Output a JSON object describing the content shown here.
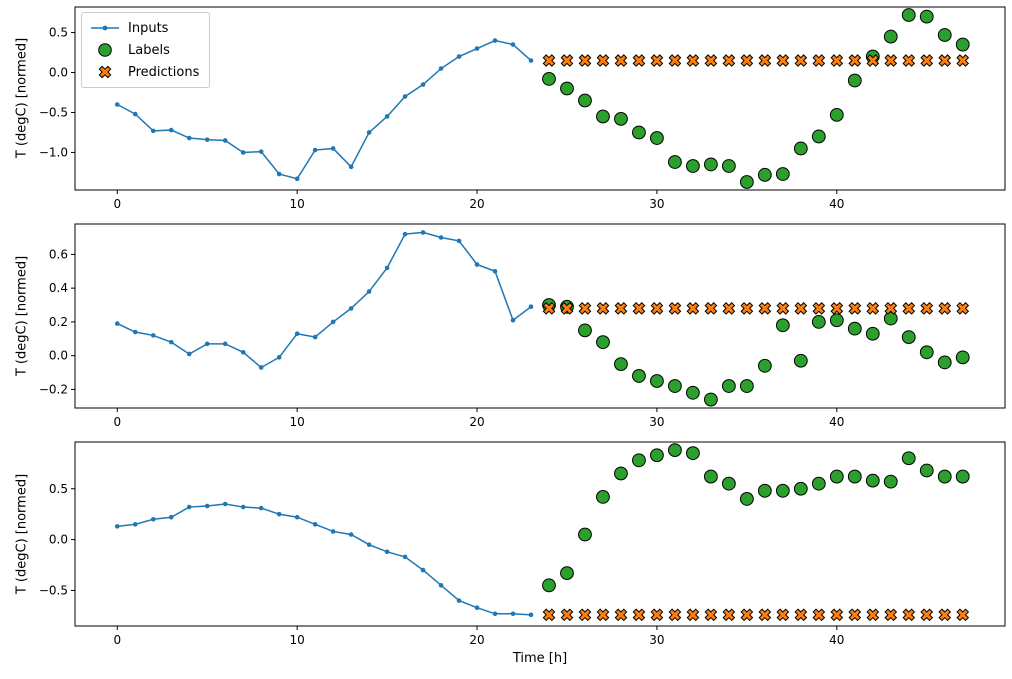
{
  "figure": {
    "xlabel": "Time [h]",
    "background": "#ffffff"
  },
  "legend": {
    "items": [
      {
        "label": "Inputs",
        "marker": "line-dot",
        "color": "#1f77b4"
      },
      {
        "label": "Labels",
        "marker": "circle",
        "color": "#2ca02c"
      },
      {
        "label": "Predictions",
        "marker": "x-cross",
        "color": "#ff7f0e"
      }
    ],
    "edge_color": "#cccccc",
    "position": "upper-left"
  },
  "chart_data": [
    {
      "type": "line",
      "title": "",
      "xlabel": "",
      "ylabel": "T (degC) [normed]",
      "xlim": [
        -2.35,
        49.35
      ],
      "ylim": [
        -1.47,
        0.82
      ],
      "xticks": [
        0,
        10,
        20,
        30,
        40
      ],
      "yticks": [
        0.5,
        0.0,
        -0.5,
        -1.0
      ],
      "grid": false,
      "series": [
        {
          "name": "Inputs",
          "type": "line",
          "color": "#1f77b4",
          "x": [
            0,
            1,
            2,
            3,
            4,
            5,
            6,
            7,
            8,
            9,
            10,
            11,
            12,
            13,
            14,
            15,
            16,
            17,
            18,
            19,
            20,
            21,
            22,
            23
          ],
          "y": [
            -0.4,
            -0.52,
            -0.73,
            -0.72,
            -0.82,
            -0.84,
            -0.85,
            -1.0,
            -0.99,
            -1.27,
            -1.33,
            -0.97,
            -0.95,
            -1.18,
            -0.75,
            -0.55,
            -0.3,
            -0.15,
            0.05,
            0.2,
            0.3,
            0.4,
            0.35,
            0.15
          ]
        },
        {
          "name": "Labels",
          "type": "scatter-circle",
          "color": "#2ca02c",
          "x": [
            24,
            25,
            26,
            27,
            28,
            29,
            30,
            31,
            32,
            33,
            34,
            35,
            36,
            37,
            38,
            39,
            40,
            41,
            42,
            43,
            44,
            45,
            46,
            47
          ],
          "y": [
            -0.08,
            -0.2,
            -0.35,
            -0.55,
            -0.58,
            -0.75,
            -0.82,
            -1.12,
            -1.17,
            -1.15,
            -1.17,
            -1.37,
            -1.28,
            -1.27,
            -0.95,
            -0.8,
            -0.53,
            -0.1,
            0.2,
            0.45,
            0.72,
            0.7,
            0.47,
            0.35
          ]
        },
        {
          "name": "Predictions",
          "type": "scatter-x",
          "color": "#ff7f0e",
          "x": [
            24,
            25,
            26,
            27,
            28,
            29,
            30,
            31,
            32,
            33,
            34,
            35,
            36,
            37,
            38,
            39,
            40,
            41,
            42,
            43,
            44,
            45,
            46,
            47
          ],
          "y": [
            0.15,
            0.15,
            0.15,
            0.15,
            0.15,
            0.15,
            0.15,
            0.15,
            0.15,
            0.15,
            0.15,
            0.15,
            0.15,
            0.15,
            0.15,
            0.15,
            0.15,
            0.15,
            0.15,
            0.15,
            0.15,
            0.15,
            0.15,
            0.15
          ]
        }
      ]
    },
    {
      "type": "line",
      "title": "",
      "xlabel": "",
      "ylabel": "T (degC) [normed]",
      "xlim": [
        -2.35,
        49.35
      ],
      "ylim": [
        -0.31,
        0.78
      ],
      "xticks": [
        0,
        10,
        20,
        30,
        40
      ],
      "yticks": [
        0.6,
        0.4,
        0.2,
        0.0,
        -0.2
      ],
      "grid": false,
      "series": [
        {
          "name": "Inputs",
          "type": "line",
          "color": "#1f77b4",
          "x": [
            0,
            1,
            2,
            3,
            4,
            5,
            6,
            7,
            8,
            9,
            10,
            11,
            12,
            13,
            14,
            15,
            16,
            17,
            18,
            19,
            20,
            21,
            22,
            23
          ],
          "y": [
            0.19,
            0.14,
            0.12,
            0.08,
            0.01,
            0.07,
            0.07,
            0.02,
            -0.07,
            -0.01,
            0.13,
            0.11,
            0.2,
            0.28,
            0.38,
            0.52,
            0.72,
            0.73,
            0.7,
            0.68,
            0.54,
            0.5,
            0.21,
            0.29
          ]
        },
        {
          "name": "Labels",
          "type": "scatter-circle",
          "color": "#2ca02c",
          "x": [
            24,
            25,
            26,
            27,
            28,
            29,
            30,
            31,
            32,
            33,
            34,
            35,
            36,
            37,
            38,
            39,
            40,
            41,
            42,
            43,
            44,
            45,
            46,
            47
          ],
          "y": [
            0.3,
            0.29,
            0.15,
            0.08,
            -0.05,
            -0.12,
            -0.15,
            -0.18,
            -0.22,
            -0.26,
            -0.18,
            -0.18,
            -0.06,
            0.18,
            -0.03,
            0.2,
            0.21,
            0.16,
            0.13,
            0.22,
            0.11,
            0.02,
            -0.04,
            -0.01
          ]
        },
        {
          "name": "Predictions",
          "type": "scatter-x",
          "color": "#ff7f0e",
          "x": [
            24,
            25,
            26,
            27,
            28,
            29,
            30,
            31,
            32,
            33,
            34,
            35,
            36,
            37,
            38,
            39,
            40,
            41,
            42,
            43,
            44,
            45,
            46,
            47
          ],
          "y": [
            0.28,
            0.28,
            0.28,
            0.28,
            0.28,
            0.28,
            0.28,
            0.28,
            0.28,
            0.28,
            0.28,
            0.28,
            0.28,
            0.28,
            0.28,
            0.28,
            0.28,
            0.28,
            0.28,
            0.28,
            0.28,
            0.28,
            0.28,
            0.28
          ]
        }
      ]
    },
    {
      "type": "line",
      "title": "",
      "xlabel": "Time [h]",
      "ylabel": "T (degC) [normed]",
      "xlim": [
        -2.35,
        49.35
      ],
      "ylim": [
        -0.85,
        0.96
      ],
      "xticks": [
        0,
        10,
        20,
        30,
        40
      ],
      "yticks": [
        0.5,
        0.0,
        -0.5
      ],
      "grid": false,
      "series": [
        {
          "name": "Inputs",
          "type": "line",
          "color": "#1f77b4",
          "x": [
            0,
            1,
            2,
            3,
            4,
            5,
            6,
            7,
            8,
            9,
            10,
            11,
            12,
            13,
            14,
            15,
            16,
            17,
            18,
            19,
            20,
            21,
            22,
            23
          ],
          "y": [
            0.13,
            0.15,
            0.2,
            0.22,
            0.32,
            0.33,
            0.35,
            0.32,
            0.31,
            0.25,
            0.22,
            0.15,
            0.08,
            0.05,
            -0.05,
            -0.12,
            -0.17,
            -0.3,
            -0.45,
            -0.6,
            -0.67,
            -0.73,
            -0.73,
            -0.74
          ]
        },
        {
          "name": "Labels",
          "type": "scatter-circle",
          "color": "#2ca02c",
          "x": [
            24,
            25,
            26,
            27,
            28,
            29,
            30,
            31,
            32,
            33,
            34,
            35,
            36,
            37,
            38,
            39,
            40,
            41,
            42,
            43,
            44,
            45,
            46,
            47
          ],
          "y": [
            -0.45,
            -0.33,
            0.05,
            0.42,
            0.65,
            0.78,
            0.83,
            0.88,
            0.85,
            0.62,
            0.55,
            0.4,
            0.48,
            0.48,
            0.5,
            0.55,
            0.62,
            0.62,
            0.58,
            0.57,
            0.8,
            0.68,
            0.62,
            0.62
          ]
        },
        {
          "name": "Predictions",
          "type": "scatter-x",
          "color": "#ff7f0e",
          "x": [
            24,
            25,
            26,
            27,
            28,
            29,
            30,
            31,
            32,
            33,
            34,
            35,
            36,
            37,
            38,
            39,
            40,
            41,
            42,
            43,
            44,
            45,
            46,
            47
          ],
          "y": [
            -0.74,
            -0.74,
            -0.74,
            -0.74,
            -0.74,
            -0.74,
            -0.74,
            -0.74,
            -0.74,
            -0.74,
            -0.74,
            -0.74,
            -0.74,
            -0.74,
            -0.74,
            -0.74,
            -0.74,
            -0.74,
            -0.74,
            -0.74,
            -0.74,
            -0.74,
            -0.74,
            -0.74
          ]
        }
      ]
    }
  ]
}
